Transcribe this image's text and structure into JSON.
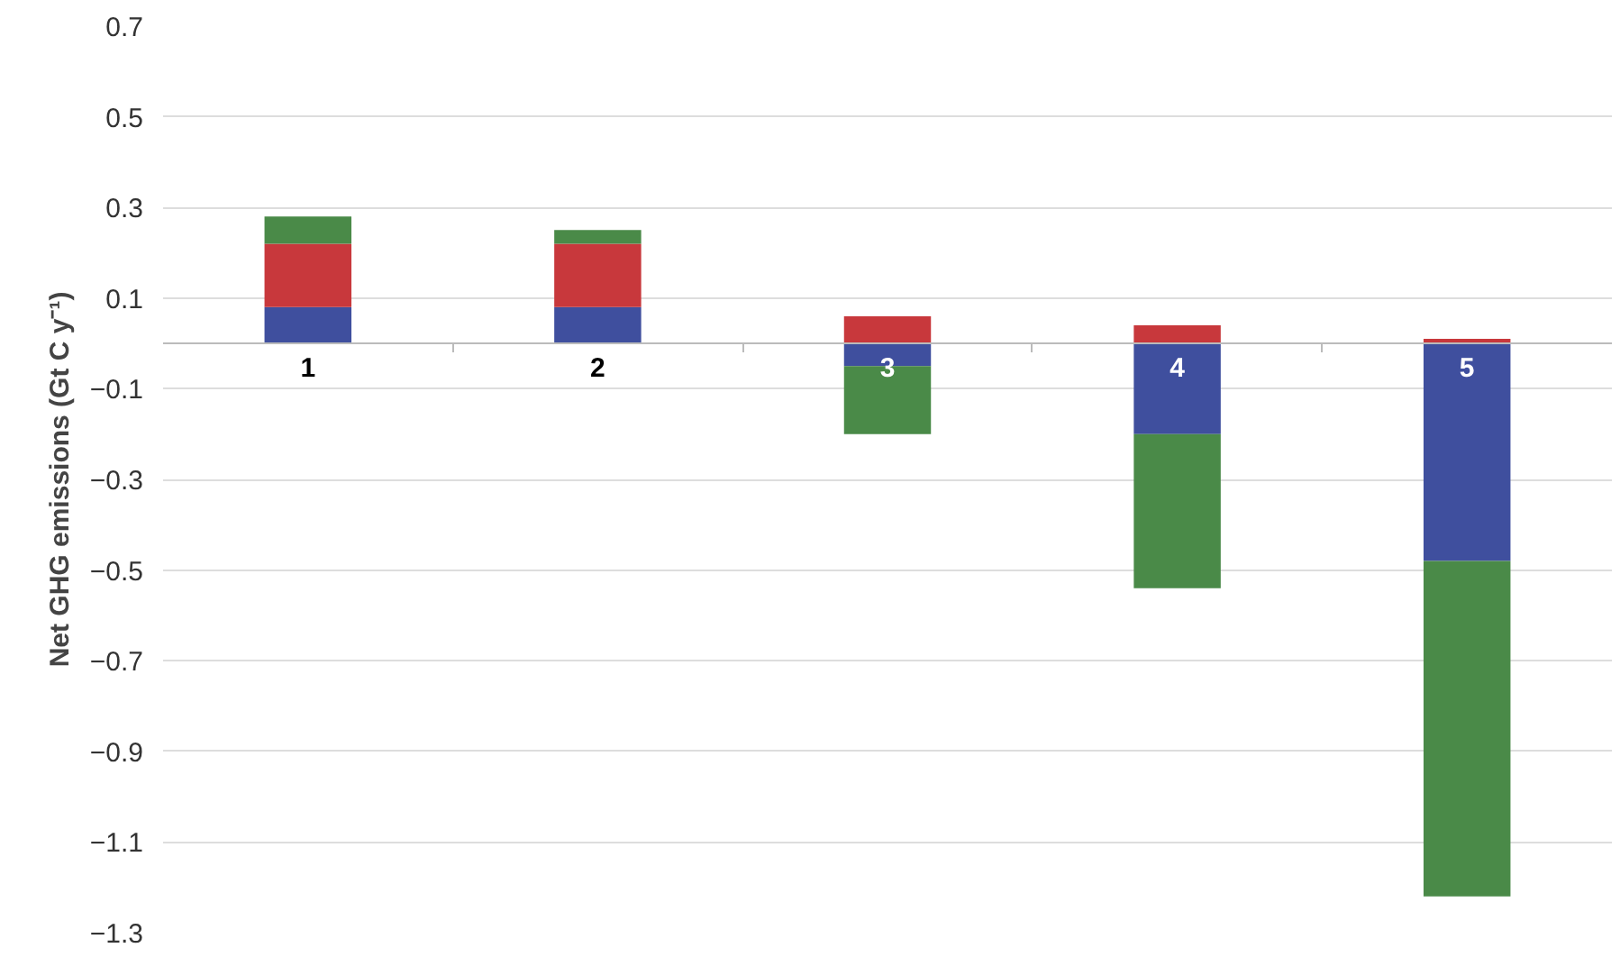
{
  "chart_data": {
    "type": "bar",
    "stacked": true,
    "ylabel": "Net GHG emissions (Gt C y⁻¹)",
    "categories": [
      "1",
      "2",
      "3",
      "4",
      "5"
    ],
    "series": [
      {
        "color": "#3f4f9e",
        "values": [
          0.08,
          0.08,
          -0.05,
          -0.2,
          -0.48
        ]
      },
      {
        "color": "#c8383c",
        "values": [
          0.14,
          0.14,
          0.06,
          0.04,
          0.01
        ]
      },
      {
        "color": "#4a8a48",
        "values": [
          0.06,
          0.03,
          -0.15,
          -0.34,
          -0.74
        ]
      }
    ],
    "ylim": [
      -1.3,
      0.7
    ],
    "yticks": [
      -1.3,
      -1.1,
      -0.9,
      -0.7,
      -0.5,
      -0.3,
      -0.1,
      0.1,
      0.3,
      0.5,
      0.7
    ],
    "grid": "y"
  }
}
